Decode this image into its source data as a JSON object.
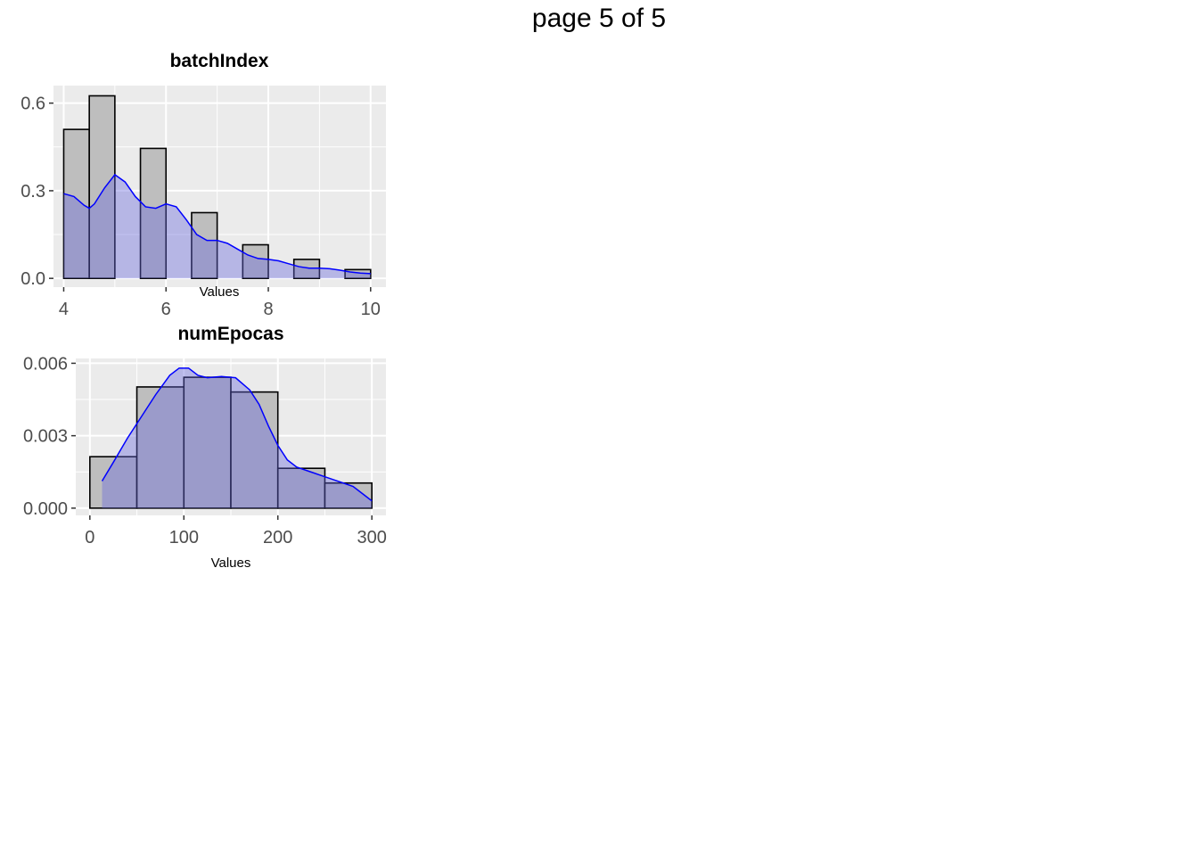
{
  "page": {
    "title": "page 5 of 5"
  },
  "colors": {
    "panel_bg": "#EBEBEB",
    "grid": "#FFFFFF",
    "hist_fill": "#BEBEBE",
    "hist_stroke": "#000000",
    "density_line": "#0000FF",
    "density_fill": "#6666DD"
  },
  "chart_data": [
    {
      "type": "histogram",
      "title": "batchIndex",
      "xlabel": "Values",
      "ylabel": "",
      "xlim": [
        3.8,
        10.3
      ],
      "ylim": [
        -0.03,
        0.66
      ],
      "x_ticks": [
        4,
        6,
        8,
        10
      ],
      "x_tick_labels": [
        "4",
        "6",
        "8",
        "10"
      ],
      "y_ticks": [
        0.0,
        0.3,
        0.6
      ],
      "y_tick_labels": [
        "0.0",
        "0.3",
        "0.6"
      ],
      "grid": true,
      "bins": [
        {
          "x0": 4.0,
          "x1": 4.5,
          "density": 0.51
        },
        {
          "x0": 4.5,
          "x1": 5.0,
          "density": 0.625
        },
        {
          "x0": 5.0,
          "x1": 5.5,
          "density": 0.0
        },
        {
          "x0": 5.5,
          "x1": 6.0,
          "density": 0.445
        },
        {
          "x0": 6.0,
          "x1": 6.5,
          "density": 0.0
        },
        {
          "x0": 6.5,
          "x1": 7.0,
          "density": 0.225
        },
        {
          "x0": 7.0,
          "x1": 7.5,
          "density": 0.0
        },
        {
          "x0": 7.5,
          "x1": 8.0,
          "density": 0.115
        },
        {
          "x0": 8.0,
          "x1": 8.5,
          "density": 0.0
        },
        {
          "x0": 8.5,
          "x1": 9.0,
          "density": 0.065
        },
        {
          "x0": 9.0,
          "x1": 9.5,
          "density": 0.0
        },
        {
          "x0": 9.5,
          "x1": 10.0,
          "density": 0.03
        }
      ],
      "density": {
        "x": [
          4.0,
          4.2,
          4.4,
          4.5,
          4.6,
          4.8,
          5.0,
          5.2,
          5.4,
          5.6,
          5.8,
          6.0,
          6.2,
          6.4,
          6.6,
          6.8,
          7.0,
          7.2,
          7.4,
          7.6,
          7.8,
          8.0,
          8.2,
          8.4,
          8.6,
          8.8,
          9.0,
          9.2,
          9.4,
          9.6,
          9.8,
          10.0
        ],
        "y": [
          0.29,
          0.28,
          0.25,
          0.24,
          0.255,
          0.31,
          0.355,
          0.33,
          0.28,
          0.245,
          0.24,
          0.255,
          0.245,
          0.2,
          0.15,
          0.13,
          0.13,
          0.12,
          0.1,
          0.08,
          0.068,
          0.065,
          0.06,
          0.05,
          0.04,
          0.035,
          0.035,
          0.033,
          0.028,
          0.022,
          0.018,
          0.016
        ]
      }
    },
    {
      "type": "histogram",
      "title": "numEpocas",
      "xlabel": "Values",
      "ylabel": "",
      "xlim": [
        -15,
        315
      ],
      "ylim": [
        -0.0003,
        0.0062
      ],
      "x_ticks": [
        0,
        100,
        200,
        300
      ],
      "x_tick_labels": [
        "0",
        "100",
        "200",
        "300"
      ],
      "y_ticks": [
        0.0,
        0.003,
        0.006
      ],
      "y_tick_labels": [
        "0.000",
        "0.003",
        "0.006"
      ],
      "grid": true,
      "bins": [
        {
          "x0": 0,
          "x1": 50,
          "density": 0.00213
        },
        {
          "x0": 50,
          "x1": 100,
          "density": 0.00502
        },
        {
          "x0": 100,
          "x1": 150,
          "density": 0.00542
        },
        {
          "x0": 150,
          "x1": 200,
          "density": 0.00481
        },
        {
          "x0": 200,
          "x1": 250,
          "density": 0.00165
        },
        {
          "x0": 250,
          "x1": 300,
          "density": 0.00104
        }
      ],
      "density": {
        "x": [
          13,
          25,
          40,
          55,
          70,
          85,
          95,
          105,
          115,
          125,
          140,
          155,
          170,
          180,
          190,
          200,
          210,
          220,
          235,
          250,
          265,
          280,
          290,
          300
        ],
        "y": [
          0.00112,
          0.0019,
          0.0029,
          0.0038,
          0.0047,
          0.0055,
          0.0058,
          0.0058,
          0.0055,
          0.0054,
          0.00545,
          0.0054,
          0.0049,
          0.0043,
          0.0034,
          0.0026,
          0.002,
          0.0017,
          0.0015,
          0.0013,
          0.0011,
          0.0009,
          0.0006,
          0.0003
        ]
      }
    }
  ]
}
